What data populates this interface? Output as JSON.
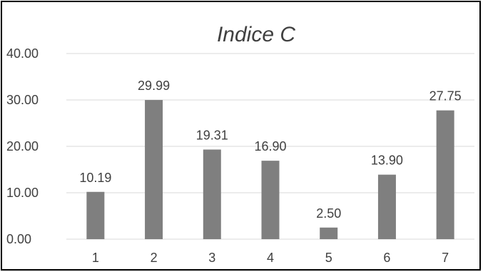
{
  "chart_data": {
    "type": "bar",
    "title": "Indice C",
    "categories": [
      "1",
      "2",
      "3",
      "4",
      "5",
      "6",
      "7"
    ],
    "values": [
      10.19,
      29.99,
      19.31,
      16.9,
      2.5,
      13.9,
      27.75
    ],
    "data_labels": [
      "10.19",
      "29.99",
      "19.31",
      "16.90",
      "2.50",
      "13.90",
      "27.75"
    ],
    "y_ticks": [
      "0.00",
      "10.00",
      "20.00",
      "30.00",
      "40.00"
    ],
    "ylim": [
      0,
      40
    ],
    "grid": true,
    "legend": "none",
    "bar_color": "#7f7f7f",
    "grid_color": "#d9d9d9"
  }
}
